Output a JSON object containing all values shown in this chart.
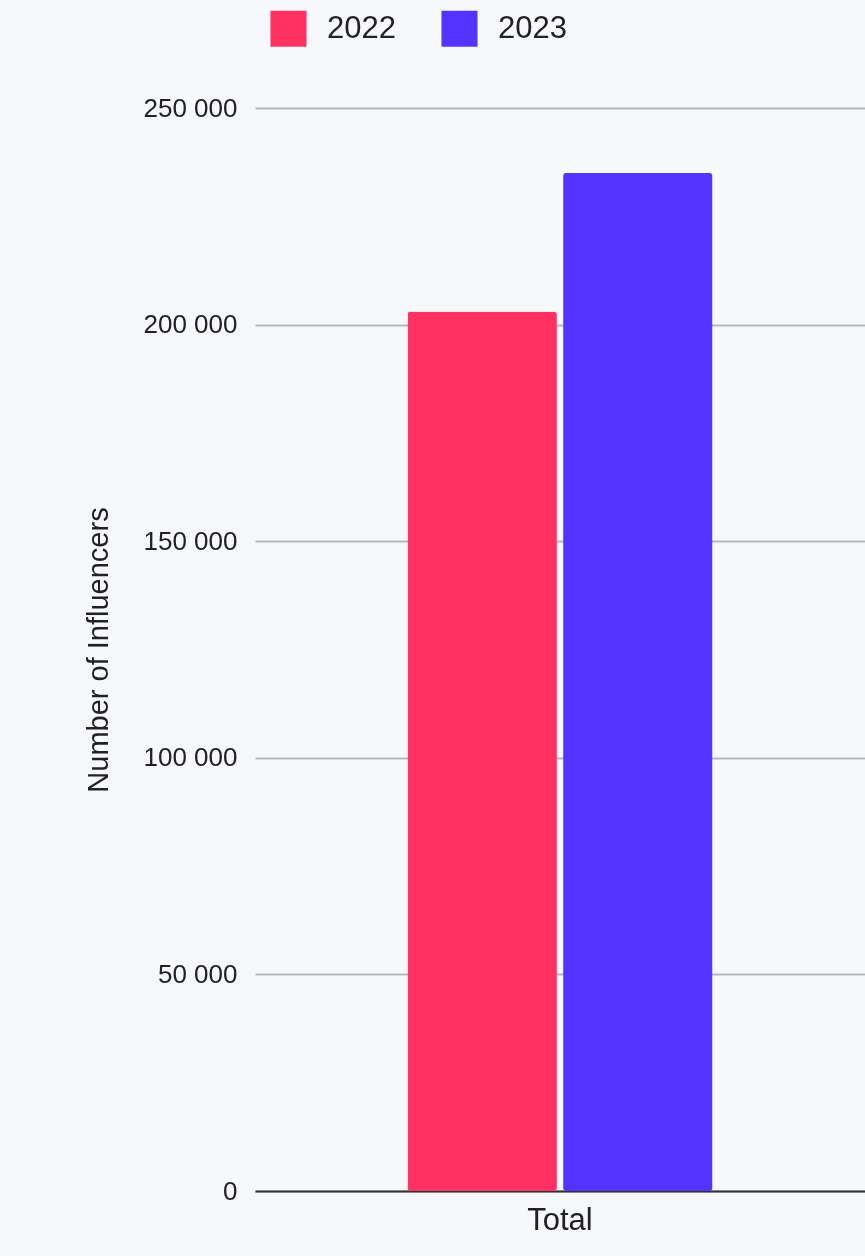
{
  "chart_data": {
    "type": "bar",
    "ylabel": "Number of Influencers",
    "categories": [
      "Total"
    ],
    "series": [
      {
        "name": "2022",
        "color": "#ff3162",
        "values": [
          203000
        ]
      },
      {
        "name": "2023",
        "color": "#5533ff",
        "values": [
          235000
        ]
      }
    ],
    "ylim": [
      0,
      250000
    ],
    "yticks": [
      {
        "value": 0,
        "label": "0"
      },
      {
        "value": 50000,
        "label": "50 000"
      },
      {
        "value": 100000,
        "label": "100 000"
      },
      {
        "value": 150000,
        "label": "150 000"
      },
      {
        "value": 200000,
        "label": "200 000"
      },
      {
        "value": 250000,
        "label": "250 000"
      }
    ],
    "grid": "y",
    "legend": "top"
  }
}
